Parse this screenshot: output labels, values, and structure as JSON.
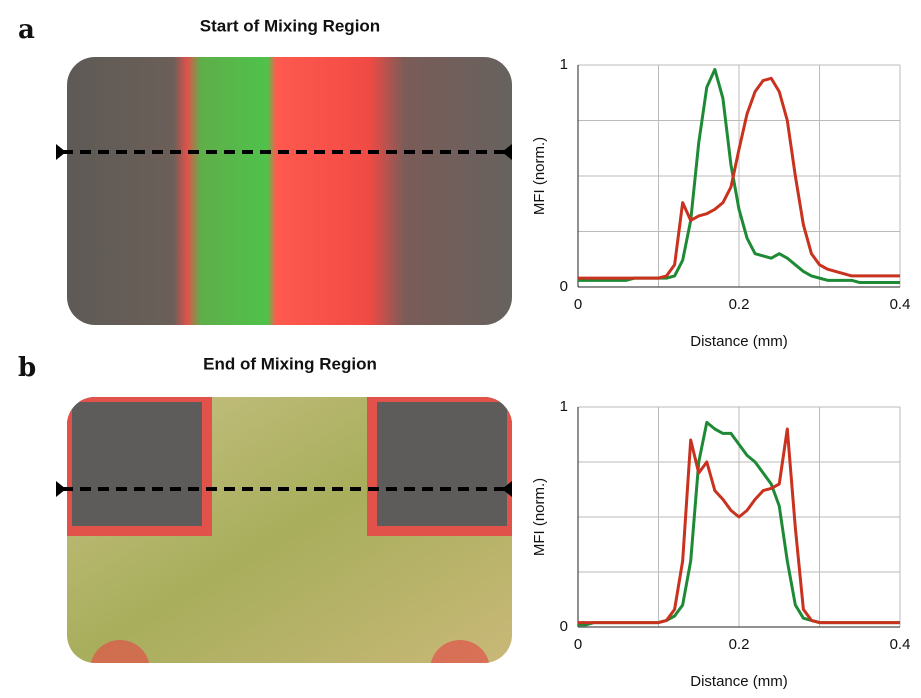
{
  "chart_data": [
    {
      "type": "line",
      "panel_label": "a",
      "title": "Start of Mixing Region",
      "x_label": "Distance (mm)",
      "y_label": "MFI (norm.)",
      "xlim": [
        0,
        0.4
      ],
      "ylim": [
        0,
        1
      ],
      "xticks": [
        0,
        0.2,
        0.4
      ],
      "yticks": [
        0,
        1
      ],
      "minor_xticks": [
        0.1,
        0.3
      ],
      "minor_yticks": [
        0.25,
        0.5,
        0.75
      ],
      "grid": true,
      "x": [
        0,
        0.01,
        0.02,
        0.03,
        0.04,
        0.05,
        0.06,
        0.07,
        0.08,
        0.09,
        0.1,
        0.11,
        0.12,
        0.13,
        0.14,
        0.15,
        0.16,
        0.17,
        0.18,
        0.19,
        0.2,
        0.21,
        0.22,
        0.23,
        0.24,
        0.25,
        0.26,
        0.27,
        0.28,
        0.29,
        0.3,
        0.31,
        0.32,
        0.33,
        0.34,
        0.35,
        0.36,
        0.37,
        0.38,
        0.39,
        0.4
      ],
      "series": [
        {
          "color": "#1e8a36",
          "values": [
            0.03,
            0.03,
            0.03,
            0.03,
            0.03,
            0.03,
            0.03,
            0.04,
            0.04,
            0.04,
            0.04,
            0.04,
            0.05,
            0.12,
            0.3,
            0.65,
            0.9,
            0.98,
            0.85,
            0.55,
            0.35,
            0.22,
            0.15,
            0.14,
            0.13,
            0.15,
            0.13,
            0.1,
            0.07,
            0.05,
            0.04,
            0.03,
            0.03,
            0.03,
            0.03,
            0.02,
            0.02,
            0.02,
            0.02,
            0.02,
            0.02
          ]
        },
        {
          "color": "#c8321e",
          "values": [
            0.04,
            0.04,
            0.04,
            0.04,
            0.04,
            0.04,
            0.04,
            0.04,
            0.04,
            0.04,
            0.04,
            0.05,
            0.1,
            0.38,
            0.3,
            0.32,
            0.33,
            0.35,
            0.38,
            0.45,
            0.62,
            0.78,
            0.88,
            0.93,
            0.94,
            0.88,
            0.75,
            0.5,
            0.28,
            0.15,
            0.1,
            0.08,
            0.07,
            0.06,
            0.05,
            0.05,
            0.05,
            0.05,
            0.05,
            0.05,
            0.05
          ]
        }
      ]
    },
    {
      "type": "line",
      "panel_label": "b",
      "title": "End of Mixing Region",
      "x_label": "Distance (mm)",
      "y_label": "MFI (norm.)",
      "xlim": [
        0,
        0.4
      ],
      "ylim": [
        0,
        1
      ],
      "xticks": [
        0,
        0.2,
        0.4
      ],
      "yticks": [
        0,
        1
      ],
      "minor_xticks": [
        0.1,
        0.3
      ],
      "minor_yticks": [
        0.25,
        0.5,
        0.75
      ],
      "grid": true,
      "x": [
        0,
        0.01,
        0.02,
        0.03,
        0.04,
        0.05,
        0.06,
        0.07,
        0.08,
        0.09,
        0.1,
        0.11,
        0.12,
        0.13,
        0.14,
        0.15,
        0.16,
        0.17,
        0.18,
        0.19,
        0.2,
        0.21,
        0.22,
        0.23,
        0.24,
        0.25,
        0.26,
        0.27,
        0.28,
        0.29,
        0.3,
        0.31,
        0.32,
        0.33,
        0.34,
        0.35,
        0.36,
        0.37,
        0.38,
        0.39,
        0.4
      ],
      "series": [
        {
          "color": "#1e8a36",
          "values": [
            0.01,
            0.01,
            0.02,
            0.02,
            0.02,
            0.02,
            0.02,
            0.02,
            0.02,
            0.02,
            0.02,
            0.03,
            0.05,
            0.1,
            0.3,
            0.75,
            0.93,
            0.9,
            0.88,
            0.88,
            0.83,
            0.78,
            0.75,
            0.7,
            0.65,
            0.55,
            0.3,
            0.1,
            0.04,
            0.03,
            0.02,
            0.02,
            0.02,
            0.02,
            0.02,
            0.02,
            0.02,
            0.02,
            0.02,
            0.02,
            0.02
          ]
        },
        {
          "color": "#c8321e",
          "values": [
            0.02,
            0.02,
            0.02,
            0.02,
            0.02,
            0.02,
            0.02,
            0.02,
            0.02,
            0.02,
            0.02,
            0.03,
            0.08,
            0.3,
            0.85,
            0.7,
            0.75,
            0.62,
            0.58,
            0.53,
            0.5,
            0.53,
            0.58,
            0.62,
            0.63,
            0.65,
            0.9,
            0.45,
            0.08,
            0.03,
            0.02,
            0.02,
            0.02,
            0.02,
            0.02,
            0.02,
            0.02,
            0.02,
            0.02,
            0.02,
            0.02
          ]
        }
      ]
    }
  ]
}
